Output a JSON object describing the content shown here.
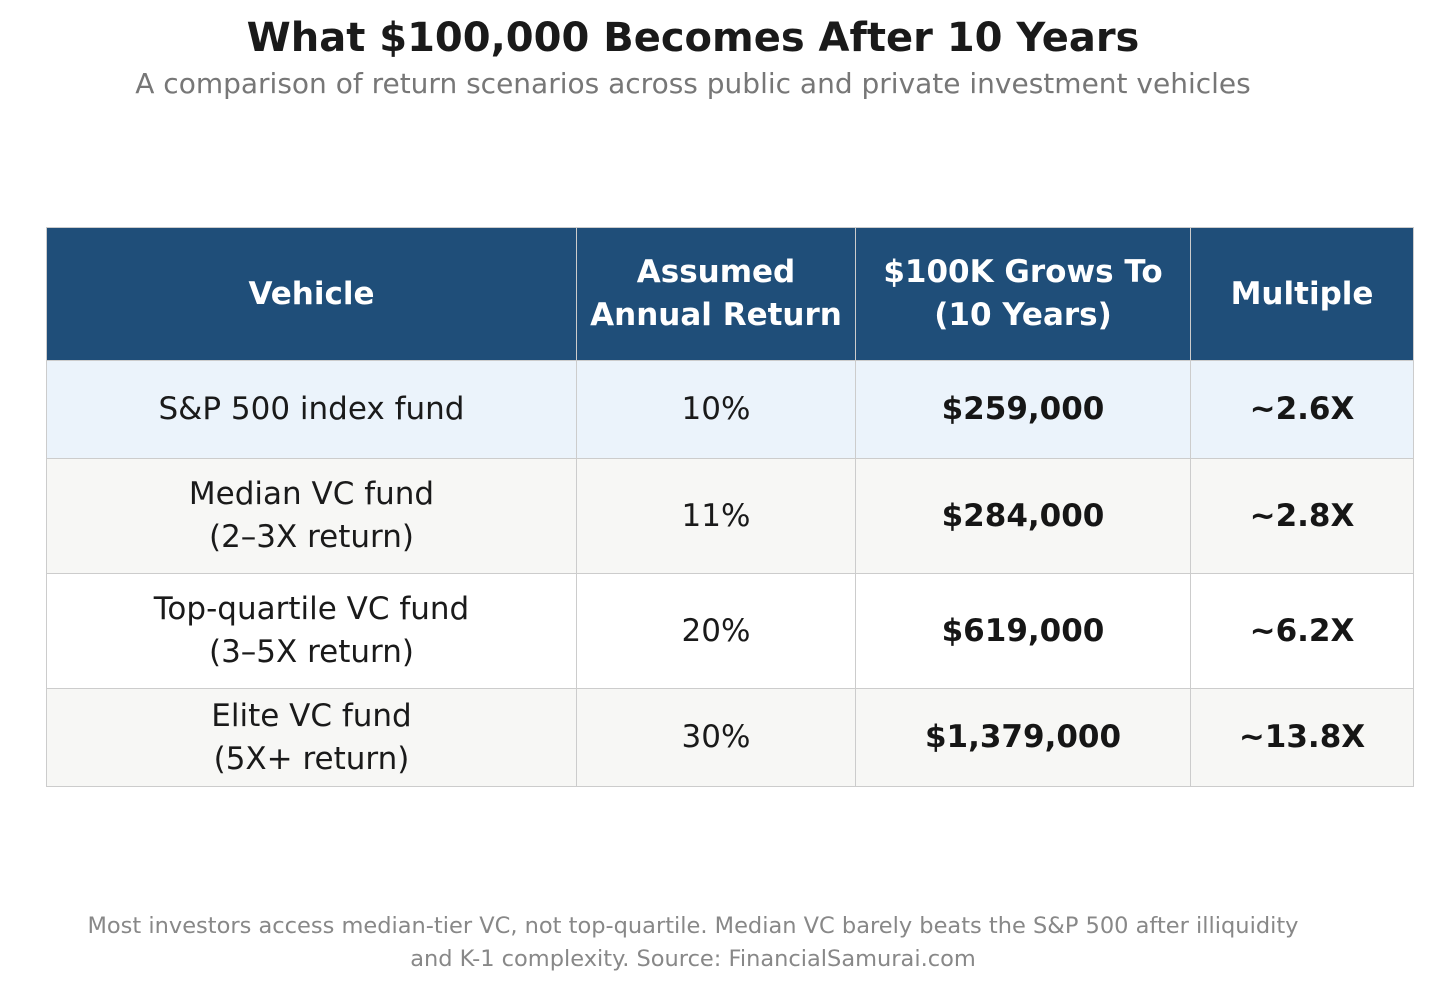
{
  "title": "What $100,000 Becomes After 10 Years",
  "subtitle": "A comparison of return scenarios across public and private investment vehicles",
  "colors": {
    "header_bg": "#1f4e79",
    "header_text": "#ffffff",
    "row_highlight": "#ebf3fb",
    "row_alt": "#f7f7f5",
    "row_plain": "#ffffff",
    "grid": "#cccccc"
  },
  "chart_data": {
    "type": "table",
    "columns": [
      [
        "Vehicle"
      ],
      [
        "Assumed",
        "Annual Return"
      ],
      [
        "$100K Grows To",
        "(10 Years)"
      ],
      [
        "Multiple"
      ]
    ],
    "rows": [
      {
        "vehicle": [
          "S&P 500 index fund"
        ],
        "annual_return": "10%",
        "grows_to": "$259,000",
        "multiple": "~2.6X",
        "bg": "#ebf3fb"
      },
      {
        "vehicle": [
          "Median VC fund",
          "(2–3X return)"
        ],
        "annual_return": "11%",
        "grows_to": "$284,000",
        "multiple": "~2.8X",
        "bg": "#f7f7f5"
      },
      {
        "vehicle": [
          "Top-quartile VC fund",
          "(3–5X return)"
        ],
        "annual_return": "20%",
        "grows_to": "$619,000",
        "multiple": "~6.2X",
        "bg": "#ffffff"
      },
      {
        "vehicle": [
          "Elite VC fund",
          "(5X+ return)"
        ],
        "annual_return": "30%",
        "grows_to": "$1,379,000",
        "multiple": "~13.8X",
        "bg": "#f7f7f5"
      }
    ]
  },
  "footnote": {
    "line1": "Most investors access median-tier VC, not top-quartile. Median VC barely beats the S&P 500 after illiquidity",
    "line2": "and K-1 complexity.   Source: FinancialSamurai.com"
  }
}
